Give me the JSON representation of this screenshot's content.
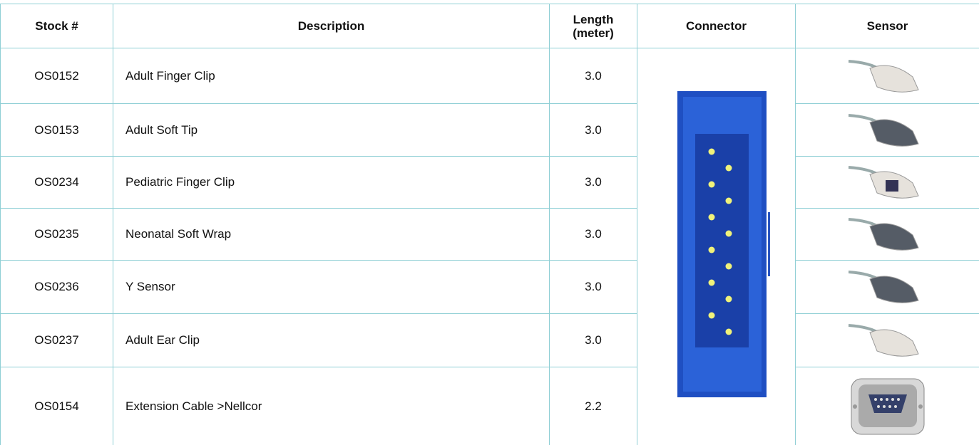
{
  "table": {
    "header": [
      "Stock #",
      "Description",
      "Length (meter)",
      "Connector",
      "Sensor"
    ],
    "rows": [
      [
        "OS0152",
        "Adult Finger Clip",
        "3.0"
      ],
      [
        "OS0153",
        "Adult Soft Tip",
        "3.0"
      ],
      [
        "OS0234",
        "Pediatric Finger Clip",
        "3.0"
      ],
      [
        "OS0235",
        "Neonatal Soft Wrap",
        "3.0"
      ],
      [
        "OS0236",
        "Y Sensor",
        "3.0"
      ],
      [
        "OS0237",
        "Adult Ear Clip",
        "3.0"
      ],
      [
        "OS0154",
        "Extension Cable >Nellcor",
        "2.2"
      ]
    ]
  }
}
